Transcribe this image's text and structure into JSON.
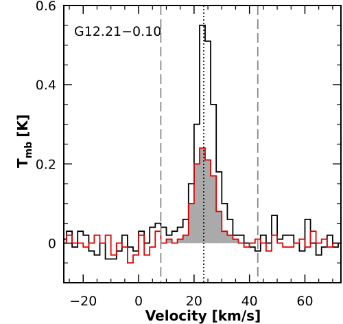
{
  "chart_data": {
    "type": "line",
    "title": "",
    "annotation": "G12.21−0.10",
    "xlabel": "Velocity [km/s]",
    "ylabel_main": "T",
    "ylabel_sub": "mb",
    "ylabel_unit": "[K]",
    "xlim": [
      -27,
      73
    ],
    "ylim": [
      -0.1,
      0.6
    ],
    "xticks": [
      -20,
      0,
      20,
      40,
      60
    ],
    "xtick_labels": [
      "−20",
      "0",
      "20",
      "40",
      "60"
    ],
    "yticks": [
      0,
      0.2,
      0.4,
      0.6
    ],
    "ytick_labels": [
      "0",
      "0.2",
      "0.4",
      "0.6"
    ],
    "dashed_lines_x": [
      8,
      43
    ],
    "dotted_line_x": 23.5,
    "fill_range_x": [
      8,
      37
    ],
    "fill_color": "#aaaaaa",
    "grid": false,
    "series": [
      {
        "color": "#000000",
        "x": [
          -27,
          -25,
          -23,
          -21,
          -19,
          -17,
          -15,
          -13,
          -11,
          -9,
          -7,
          -5,
          -3,
          -1,
          1,
          3,
          5,
          7,
          9,
          11,
          13,
          15,
          17,
          19,
          21,
          23,
          25,
          27,
          29,
          31,
          33,
          35,
          37,
          39,
          41,
          43,
          45,
          47,
          49,
          51,
          53,
          55,
          57,
          59,
          61,
          63,
          65,
          67,
          69,
          71,
          73
        ],
        "y": [
          0.01,
          0.03,
          -0.01,
          0.03,
          0.02,
          -0.02,
          -0.03,
          0.0,
          -0.04,
          -0.04,
          -0.02,
          0.02,
          -0.01,
          -0.02,
          0.03,
          0.0,
          0.04,
          0.05,
          0.04,
          0.02,
          0.03,
          0.04,
          0.06,
          0.15,
          0.3,
          0.55,
          0.51,
          0.35,
          0.18,
          0.1,
          0.06,
          0.02,
          0.02,
          0.0,
          -0.01,
          -0.02,
          0.02,
          0.0,
          0.07,
          0.01,
          0.02,
          0.02,
          0.0,
          -0.02,
          0.06,
          0.0,
          -0.03,
          -0.01,
          0.02,
          -0.01,
          0.0
        ]
      },
      {
        "color": "#e00000",
        "x": [
          -27,
          -25,
          -23,
          -21,
          -19,
          -17,
          -15,
          -13,
          -11,
          -9,
          -7,
          -5,
          -3,
          -1,
          1,
          3,
          5,
          7,
          9,
          11,
          13,
          15,
          17,
          19,
          21,
          23,
          25,
          27,
          29,
          31,
          33,
          35,
          37,
          39,
          41,
          43,
          45,
          47,
          49,
          51,
          53,
          55,
          57,
          59,
          61,
          63,
          65,
          67,
          69,
          71,
          73
        ],
        "y": [
          0.0,
          0.02,
          0.0,
          0.0,
          -0.01,
          0.0,
          0.02,
          0.0,
          0.02,
          -0.03,
          0.0,
          -0.01,
          -0.05,
          -0.03,
          0.02,
          -0.03,
          -0.01,
          0.03,
          0.0,
          0.01,
          0.0,
          0.01,
          0.02,
          0.1,
          0.2,
          0.24,
          0.21,
          0.17,
          0.08,
          0.03,
          0.02,
          0.01,
          0.0,
          -0.01,
          0.0,
          0.01,
          0.0,
          -0.02,
          0.02,
          0.0,
          -0.01,
          -0.01,
          0.0,
          0.01,
          -0.01,
          0.03,
          0.0,
          0.01,
          -0.01,
          0.0,
          0.0
        ]
      }
    ]
  }
}
